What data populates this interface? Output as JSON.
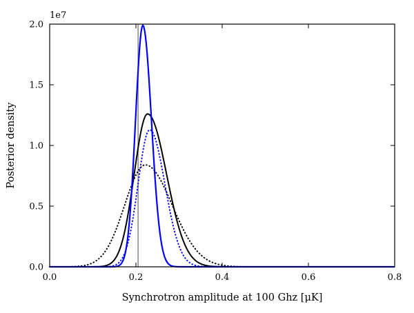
{
  "chart_data": {
    "type": "line",
    "title": "",
    "xlabel": "Synchrotron amplitude at 100 Ghz [μK]",
    "ylabel": "Posterior density",
    "y_offset_label": "1e7",
    "xlim": [
      0.0,
      0.8
    ],
    "ylim": [
      0.0,
      2.0
    ],
    "y_units": "y tick values are in units of 1e7",
    "x_tick_values": [
      0.0,
      0.2,
      0.4,
      0.6,
      0.8
    ],
    "x_tick_labels": [
      "0.0",
      "0.2",
      "0.4",
      "0.6",
      "0.8"
    ],
    "y_tick_values": [
      0.0,
      0.5,
      1.0,
      1.5,
      2.0
    ],
    "y_tick_labels": [
      "0.0",
      "0.5",
      "1.0",
      "1.5",
      "2.0"
    ],
    "grid": false,
    "legend": "none",
    "vline": {
      "x": 0.205,
      "color": "#7f7f7f",
      "label": "reference amplitude"
    },
    "curve_model": "asymmetric_gaussian",
    "series": [
      {
        "name": "black-dotted",
        "color": "#000000",
        "line_style": "dotted",
        "width": 2.0,
        "peak_x": 0.222,
        "peak_y": 0.84,
        "sigma_left": 0.048,
        "sigma_right": 0.062
      },
      {
        "name": "blue-dotted",
        "color": "#0000ff",
        "line_style": "dotted",
        "width": 2.0,
        "peak_x": 0.232,
        "peak_y": 1.13,
        "sigma_left": 0.027,
        "sigma_right": 0.035
      },
      {
        "name": "black-solid",
        "color": "#000000",
        "line_style": "solid",
        "width": 2.0,
        "peak_x": 0.227,
        "peak_y": 1.26,
        "sigma_left": 0.031,
        "sigma_right": 0.044
      },
      {
        "name": "blue-solid",
        "color": "#0000ff",
        "line_style": "solid",
        "width": 2.2,
        "peak_x": 0.216,
        "peak_y": 1.99,
        "sigma_left": 0.017,
        "sigma_right": 0.02
      }
    ]
  }
}
